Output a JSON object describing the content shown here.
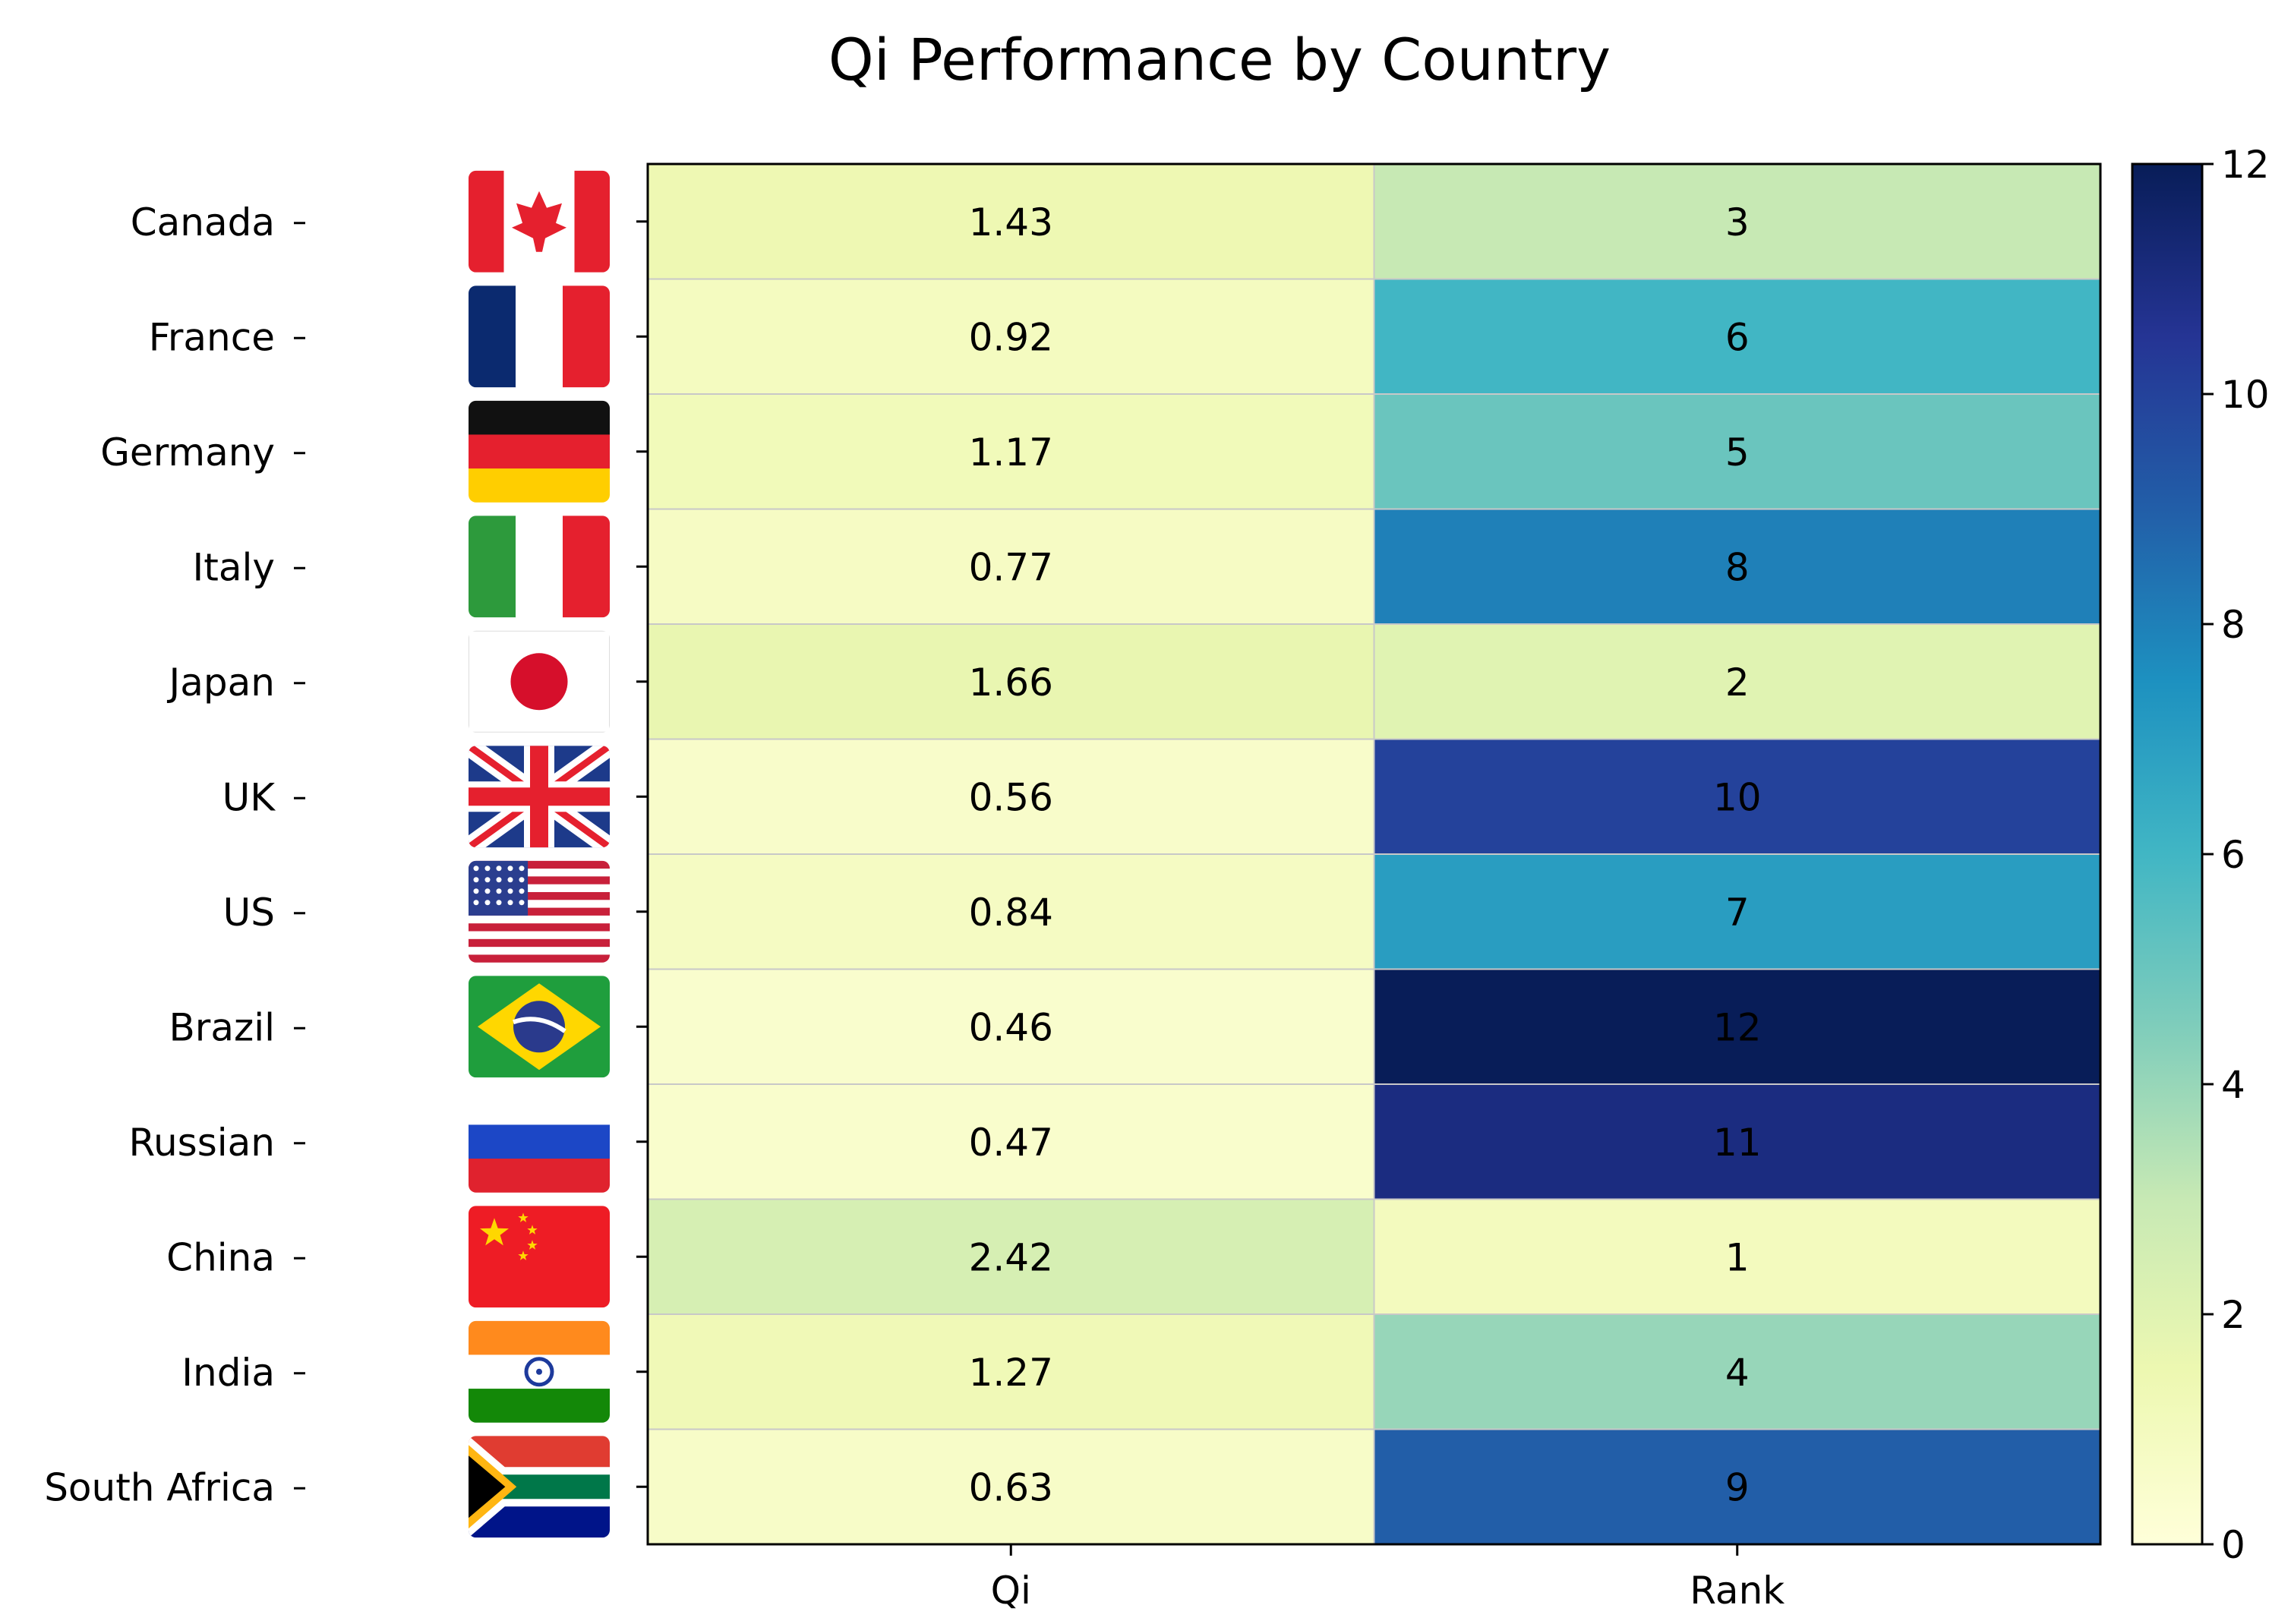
{
  "chart_data": {
    "type": "heatmap",
    "title": "Qi Performance by Country",
    "xlabel": "",
    "ylabel": "",
    "columns": [
      "Qi",
      "Rank"
    ],
    "rows": [
      "Canada",
      "France",
      "Germany",
      "Italy",
      "Japan",
      "UK",
      "US",
      "Brazil",
      "Russian",
      "China",
      "India",
      "South Africa"
    ],
    "values": [
      [
        "1.43",
        "3"
      ],
      [
        "0.92",
        "6"
      ],
      [
        "1.17",
        "5"
      ],
      [
        "0.77",
        "8"
      ],
      [
        "1.66",
        "2"
      ],
      [
        "0.56",
        "10"
      ],
      [
        "0.84",
        "7"
      ],
      [
        "0.46",
        "12"
      ],
      [
        "0.47",
        "11"
      ],
      [
        "2.42",
        "1"
      ],
      [
        "1.27",
        "4"
      ],
      [
        "0.63",
        "9"
      ]
    ],
    "colormap": "YlGnBu",
    "colorbar": {
      "range": [
        0,
        12
      ],
      "ticks": [
        "0",
        "2",
        "4",
        "6",
        "8",
        "10",
        "12"
      ]
    },
    "row_flags": [
      "canada-flag",
      "france-flag",
      "germany-flag",
      "italy-flag",
      "japan-flag",
      "uk-flag",
      "us-flag",
      "brazil-flag",
      "russia-flag",
      "china-flag",
      "india-flag",
      "south-africa-flag"
    ],
    "colors": {
      "cmap_stops": [
        "#ffffd9",
        "#edf8b1",
        "#c7e9b4",
        "#7fcdbb",
        "#41b6c4",
        "#1d91c0",
        "#225ea8",
        "#253494",
        "#081d58"
      ],
      "flags": {
        "red": "#e5202e",
        "blue": "#0b2a6f",
        "white": "#ffffff",
        "black": "#111111",
        "gold": "#ffce00",
        "green": "#2d9a3c",
        "orange": "#ff8a1d",
        "yellow": "#ffd700"
      }
    }
  }
}
